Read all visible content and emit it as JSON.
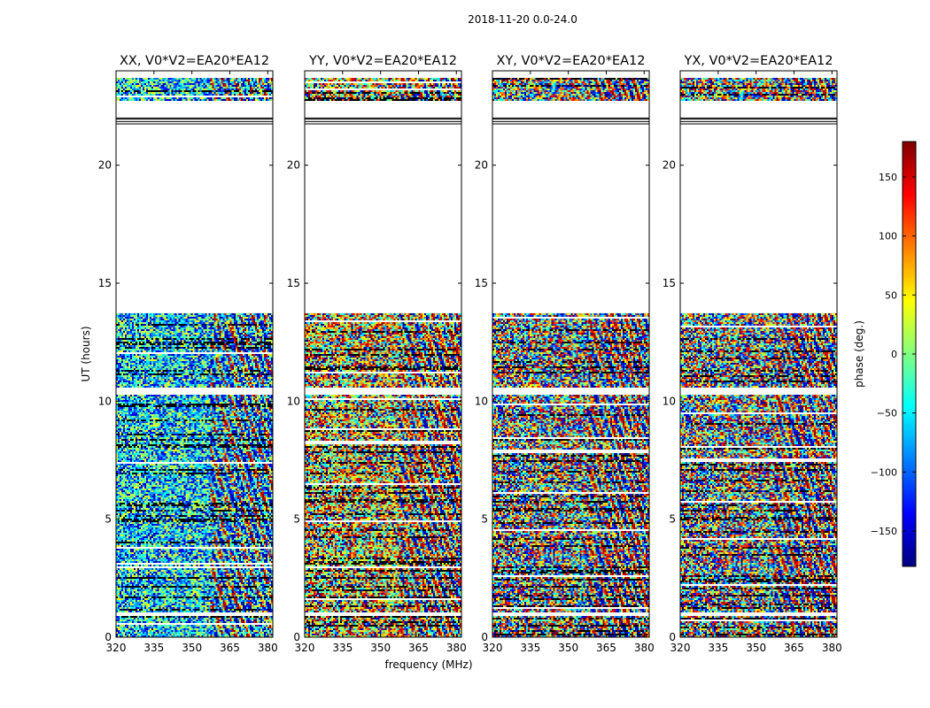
{
  "figure": {
    "suptitle": "2018-11-20 0.0-24.0",
    "xlabel": "frequency (MHz)",
    "ylabel": "UT (hours)"
  },
  "chart_data": {
    "type": "heatmap",
    "title": "2018-11-20 0.0-24.0",
    "xlabel": "frequency (MHz)",
    "ylabel": "UT (hours)",
    "xlim": [
      320,
      382
    ],
    "ylim": [
      0,
      24
    ],
    "x_ticks": [
      320,
      335,
      350,
      365,
      380
    ],
    "y_ticks": [
      0,
      5,
      10,
      15,
      20
    ],
    "panels": [
      {
        "name": "xx",
        "title": "XX, V0*V2=EA20*EA12",
        "bias": -55,
        "spread": 110,
        "show_ylabel": true,
        "show_xlabel": false
      },
      {
        "name": "yy",
        "title": "YY, V0*V2=EA20*EA12",
        "bias": 70,
        "spread": 150,
        "show_ylabel": false,
        "show_xlabel": true
      },
      {
        "name": "xy",
        "title": "XY, V0*V2=EA20*EA12",
        "bias": 0,
        "spread": 180,
        "show_ylabel": false,
        "show_xlabel": false
      },
      {
        "name": "yx",
        "title": "YX, V0*V2=EA20*EA12",
        "bias": 0,
        "spread": 180,
        "show_ylabel": false,
        "show_xlabel": false
      }
    ],
    "data_segments_hours": [
      [
        0.0,
        1.4
      ],
      [
        1.4,
        5.0
      ],
      [
        5.0,
        8.7
      ],
      [
        8.7,
        10.3
      ],
      [
        10.6,
        13.75
      ],
      [
        22.75,
        23.7
      ]
    ],
    "blank_ranges_hours": [
      [
        13.75,
        22.75
      ],
      [
        23.7,
        24.0
      ],
      [
        10.3,
        10.6
      ],
      [
        0.9,
        1.05
      ]
    ],
    "flag_lines_hours": [
      21.75,
      21.85,
      21.95,
      22.0
    ],
    "colorbar": {
      "label": "phase (deg.)",
      "colormap": "jet",
      "range": [
        -180,
        180
      ],
      "ticks": [
        -150,
        -100,
        -50,
        0,
        50,
        100,
        150
      ],
      "tick_labels": [
        "−150",
        "−100",
        "−50",
        "0",
        "50",
        "100",
        "150"
      ]
    }
  }
}
